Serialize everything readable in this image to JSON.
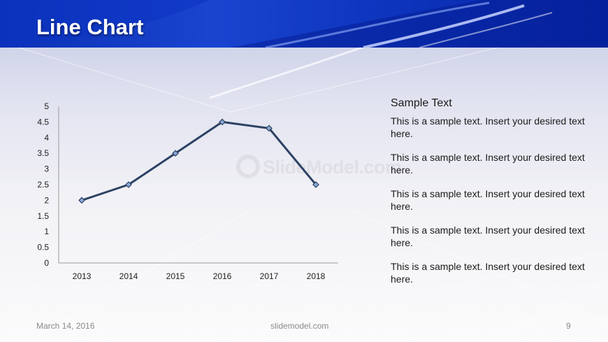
{
  "slide": {
    "title": "Line Chart",
    "watermark": "SlideModel.com"
  },
  "chart_data": {
    "type": "line",
    "categories": [
      "2013",
      "2014",
      "2015",
      "2016",
      "2017",
      "2018"
    ],
    "series": [
      {
        "values": [
          2.0,
          2.5,
          3.5,
          4.5,
          4.3,
          2.5
        ]
      }
    ],
    "ylim": [
      0,
      5
    ],
    "yticks": [
      "0",
      "0.5",
      "1",
      "1.5",
      "2",
      "2.5",
      "3",
      "3.5",
      "4",
      "4.5",
      "5"
    ],
    "marker": "diamond",
    "line_color": "#2d4263",
    "marker_color": "#8aa9d6",
    "grid": false,
    "legend": "none"
  },
  "text_panel": {
    "title": "Sample Text",
    "paragraphs": [
      "This is a sample text. Insert your desired text here.",
      "This is a sample text. Insert your desired text here.",
      "This is a sample text. Insert your desired text here.",
      "This is a sample text. Insert your desired text here.",
      "This is a sample text. Insert your desired text here."
    ]
  },
  "footer": {
    "date": "March 14, 2016",
    "site": "slidemodel.com",
    "page": "9"
  }
}
